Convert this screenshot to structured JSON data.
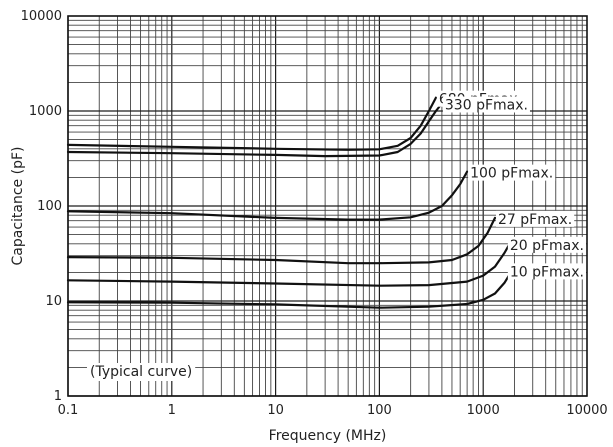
{
  "chart_data": {
    "type": "line",
    "xlabel": "Frequency (MHz)",
    "ylabel": "Capacitance (pF)",
    "xscale": "log",
    "yscale": "log",
    "xlim": [
      0.1,
      10000
    ],
    "ylim": [
      1,
      10000
    ],
    "grid": true,
    "x_ticks": [
      "0.1",
      "1",
      "10",
      "100",
      "1000",
      "10000"
    ],
    "y_ticks": [
      "1",
      "10",
      "100",
      "1000",
      "10000"
    ],
    "annotations": [
      "(Typical curve)"
    ],
    "series": [
      {
        "name": "680 pFmax.",
        "points": [
          [
            0.1,
            440
          ],
          [
            1,
            420
          ],
          [
            10,
            400
          ],
          [
            50,
            390
          ],
          [
            100,
            395
          ],
          [
            150,
            430
          ],
          [
            200,
            520
          ],
          [
            250,
            700
          ],
          [
            300,
            1000
          ],
          [
            350,
            1380
          ]
        ]
      },
      {
        "name": "330 pFmax.",
        "points": [
          [
            0.1,
            370
          ],
          [
            1,
            360
          ],
          [
            10,
            345
          ],
          [
            30,
            335
          ],
          [
            100,
            340
          ],
          [
            150,
            370
          ],
          [
            200,
            450
          ],
          [
            250,
            580
          ],
          [
            300,
            780
          ],
          [
            350,
            1000
          ],
          [
            400,
            1200
          ]
        ]
      },
      {
        "name": "100 pFmax.",
        "points": [
          [
            0.1,
            88
          ],
          [
            1,
            84
          ],
          [
            10,
            75
          ],
          [
            50,
            72
          ],
          [
            100,
            72
          ],
          [
            200,
            76
          ],
          [
            300,
            85
          ],
          [
            400,
            100
          ],
          [
            500,
            130
          ],
          [
            600,
            170
          ],
          [
            700,
            230
          ]
        ]
      },
      {
        "name": "27 pFmax.",
        "points": [
          [
            0.1,
            29
          ],
          [
            1,
            28.5
          ],
          [
            10,
            27
          ],
          [
            50,
            25
          ],
          [
            100,
            25
          ],
          [
            300,
            25.5
          ],
          [
            500,
            27
          ],
          [
            700,
            31
          ],
          [
            900,
            38
          ],
          [
            1100,
            52
          ],
          [
            1300,
            75
          ]
        ]
      },
      {
        "name": "20 pFmax.",
        "points": [
          [
            0.1,
            16.5
          ],
          [
            1,
            16
          ],
          [
            10,
            15.3
          ],
          [
            100,
            14.5
          ],
          [
            300,
            14.7
          ],
          [
            700,
            16
          ],
          [
            1000,
            18.5
          ],
          [
            1300,
            23
          ],
          [
            1600,
            32
          ],
          [
            1800,
            40
          ]
        ]
      },
      {
        "name": "10 pFmax.",
        "points": [
          [
            0.1,
            9.7
          ],
          [
            1,
            9.6
          ],
          [
            10,
            9.2
          ],
          [
            100,
            8.5
          ],
          [
            300,
            8.7
          ],
          [
            700,
            9.3
          ],
          [
            1000,
            10.3
          ],
          [
            1300,
            12
          ],
          [
            1600,
            15.5
          ],
          [
            1900,
            21
          ]
        ]
      }
    ]
  }
}
